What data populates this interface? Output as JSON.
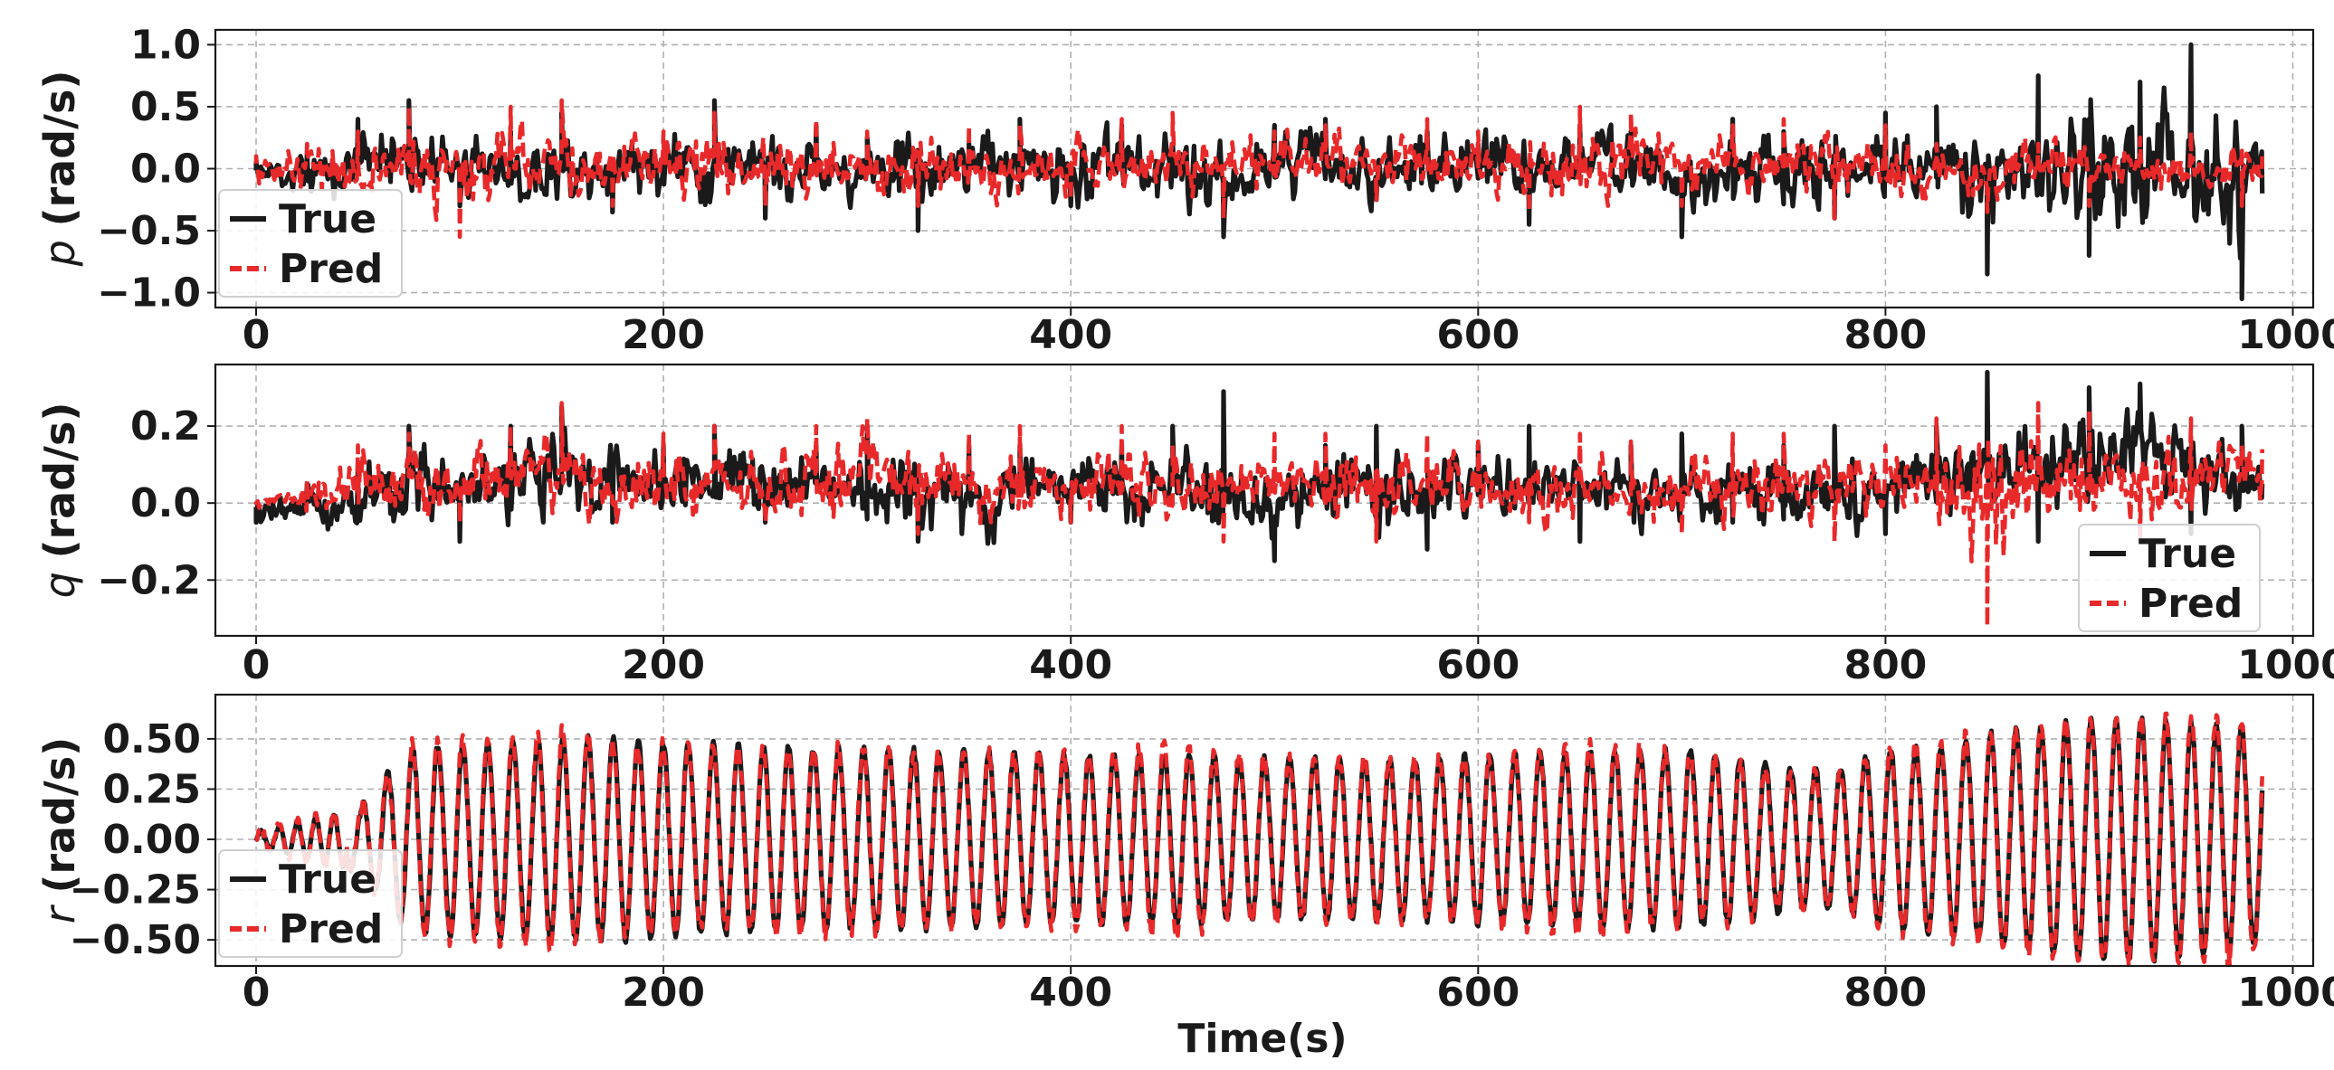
{
  "chart_data": [
    {
      "type": "line",
      "title": "",
      "ylabel_symbol": "p",
      "ylabel_unit": "(rad/s)",
      "xlabel": "",
      "xlim": [
        -20,
        1010
      ],
      "ylim": [
        -1.12,
        1.12
      ],
      "xticks": [
        0,
        200,
        400,
        600,
        800,
        1000
      ],
      "yticks": [
        -1.0,
        -0.5,
        0.0,
        0.5,
        1.0
      ],
      "ytick_labels": [
        "−1.0",
        "−0.5",
        "0.0",
        "0.5",
        "1.0"
      ],
      "grid": true,
      "legend_position": "lower-left",
      "series": [
        {
          "name": "True",
          "color": "#1a1a1a",
          "style": "solid",
          "x": [
            0,
            25,
            50,
            75,
            100,
            125,
            150,
            175,
            200,
            225,
            250,
            275,
            300,
            325,
            350,
            375,
            400,
            425,
            450,
            475,
            500,
            525,
            550,
            575,
            600,
            625,
            650,
            675,
            700,
            725,
            750,
            775,
            800,
            825,
            850,
            875,
            900,
            925,
            950,
            975,
            985
          ],
          "y": [
            0.05,
            0.12,
            0.4,
            0.55,
            -0.3,
            0.3,
            0.45,
            -0.35,
            0.1,
            0.55,
            -0.4,
            0.35,
            0.25,
            -0.5,
            0.2,
            0.4,
            -0.3,
            0.35,
            0.2,
            -0.55,
            0.35,
            0.4,
            -0.25,
            0.3,
            0.2,
            -0.45,
            0.35,
            0.3,
            -0.55,
            0.4,
            0.3,
            -0.4,
            0.45,
            0.5,
            -0.85,
            0.75,
            -0.7,
            0.7,
            1.0,
            -1.05,
            -0.2
          ],
          "envelope_low": [
            -0.15,
            -0.3,
            -0.55,
            -0.5,
            -0.4,
            -0.45,
            -0.45,
            -0.4,
            -0.45,
            -0.5,
            -0.45,
            -0.4,
            -0.45,
            -0.55,
            -0.4,
            -0.45,
            -0.5,
            -0.45,
            -0.55,
            -0.55,
            -0.45,
            -0.4,
            -0.45,
            -0.45,
            -0.45,
            -0.45,
            -0.4,
            -0.45,
            -0.55,
            -0.45,
            -0.45,
            -0.45,
            -0.5,
            -0.55,
            -0.85,
            -0.75,
            -0.7,
            -0.75,
            -0.85,
            -1.05,
            -0.25
          ],
          "envelope_high": [
            0.1,
            0.2,
            0.5,
            0.55,
            0.45,
            0.4,
            0.45,
            0.45,
            0.55,
            0.5,
            0.45,
            0.4,
            0.45,
            0.45,
            0.45,
            0.45,
            0.45,
            0.45,
            0.45,
            0.4,
            0.45,
            0.45,
            0.4,
            0.45,
            0.45,
            0.4,
            0.45,
            0.45,
            0.4,
            0.45,
            0.4,
            0.4,
            0.45,
            0.55,
            0.75,
            0.7,
            0.75,
            0.7,
            1.0,
            0.7,
            0.35
          ]
        },
        {
          "name": "Pred",
          "color": "#e8292a",
          "style": "dashed",
          "x": [
            0,
            25,
            50,
            75,
            100,
            125,
            150,
            175,
            200,
            225,
            250,
            275,
            300,
            325,
            350,
            375,
            400,
            425,
            450,
            475,
            500,
            525,
            550,
            575,
            600,
            625,
            650,
            675,
            700,
            725,
            750,
            775,
            800,
            825,
            850,
            875,
            900,
            925,
            950,
            975,
            985
          ],
          "y": [
            0.1,
            0.2,
            0.3,
            0.5,
            -0.55,
            0.5,
            0.55,
            -0.3,
            0.3,
            0.45,
            -0.3,
            0.4,
            0.3,
            -0.3,
            0.35,
            0.35,
            -0.25,
            0.4,
            0.45,
            -0.4,
            0.3,
            0.35,
            -0.25,
            0.4,
            0.3,
            -0.35,
            0.5,
            0.45,
            -0.3,
            0.35,
            0.4,
            -0.4,
            0.35,
            0.2,
            -0.35,
            0.2,
            -0.3,
            0.25,
            0.3,
            -0.3,
            0.1
          ],
          "envelope_low": [
            -0.2,
            -0.3,
            -0.4,
            -0.45,
            -0.55,
            -0.4,
            -0.4,
            -0.35,
            -0.4,
            -0.4,
            -0.35,
            -0.4,
            -0.4,
            -0.35,
            -0.4,
            -0.35,
            -0.35,
            -0.4,
            -0.4,
            -0.4,
            -0.35,
            -0.35,
            -0.35,
            -0.4,
            -0.35,
            -0.35,
            -0.4,
            -0.35,
            -0.35,
            -0.35,
            -0.35,
            -0.4,
            -0.35,
            -0.3,
            -0.35,
            -0.3,
            -0.3,
            -0.3,
            -0.3,
            -0.35,
            -0.2
          ],
          "envelope_high": [
            0.2,
            0.3,
            0.35,
            0.5,
            0.5,
            0.5,
            0.55,
            0.4,
            0.4,
            0.45,
            0.4,
            0.45,
            0.45,
            0.4,
            0.45,
            0.4,
            0.4,
            0.45,
            0.45,
            0.4,
            0.4,
            0.4,
            0.35,
            0.45,
            0.4,
            0.4,
            0.45,
            0.45,
            0.4,
            0.4,
            0.4,
            0.4,
            0.35,
            0.3,
            0.3,
            0.3,
            0.3,
            0.3,
            0.3,
            0.25,
            0.2
          ]
        }
      ]
    },
    {
      "type": "line",
      "title": "",
      "ylabel_symbol": "q",
      "ylabel_unit": "(rad/s)",
      "xlabel": "",
      "xlim": [
        -20,
        1010
      ],
      "ylim": [
        -0.345,
        0.36
      ],
      "xticks": [
        0,
        200,
        400,
        600,
        800,
        1000
      ],
      "yticks": [
        -0.2,
        0.0,
        0.2
      ],
      "ytick_labels": [
        "−0.2",
        "0.0",
        "0.2"
      ],
      "grid": true,
      "legend_position": "lower-right",
      "series": [
        {
          "name": "True",
          "color": "#1a1a1a",
          "style": "solid",
          "x": [
            0,
            25,
            50,
            75,
            100,
            125,
            150,
            175,
            200,
            225,
            250,
            275,
            300,
            325,
            350,
            375,
            400,
            425,
            450,
            475,
            500,
            525,
            550,
            575,
            600,
            625,
            650,
            675,
            700,
            725,
            750,
            775,
            800,
            825,
            850,
            875,
            900,
            925,
            950,
            975,
            985
          ],
          "y": [
            -0.05,
            0.05,
            0.1,
            0.2,
            -0.1,
            0.2,
            0.25,
            -0.05,
            0.15,
            0.2,
            -0.05,
            0.15,
            0.2,
            -0.1,
            0.15,
            0.15,
            -0.05,
            0.15,
            0.2,
            0.29,
            -0.15,
            0.15,
            0.2,
            -0.12,
            0.15,
            0.2,
            -0.1,
            0.15,
            0.18,
            -0.05,
            0.15,
            0.2,
            -0.08,
            0.2,
            0.34,
            -0.1,
            0.3,
            0.31,
            -0.08,
            0.2,
            0.05
          ],
          "envelope_low": [
            -0.08,
            -0.1,
            -0.15,
            -0.1,
            -0.12,
            -0.1,
            -0.08,
            -0.1,
            -0.12,
            -0.1,
            -0.12,
            -0.08,
            -0.1,
            -0.12,
            -0.2,
            -0.1,
            -0.12,
            -0.12,
            -0.12,
            -0.15,
            -0.18,
            -0.1,
            -0.15,
            -0.2,
            -0.1,
            -0.12,
            -0.08,
            -0.12,
            -0.1,
            -0.1,
            -0.12,
            -0.15,
            -0.1,
            -0.1,
            -0.15,
            -0.1,
            -0.1,
            -0.08,
            -0.1,
            -0.1,
            -0.05
          ],
          "envelope_high": [
            0.0,
            0.08,
            0.15,
            0.22,
            0.18,
            0.2,
            0.25,
            0.2,
            0.2,
            0.22,
            0.18,
            0.18,
            0.2,
            0.18,
            0.18,
            0.18,
            0.18,
            0.18,
            0.2,
            0.29,
            0.18,
            0.18,
            0.18,
            0.18,
            0.18,
            0.2,
            0.16,
            0.16,
            0.18,
            0.16,
            0.18,
            0.18,
            0.18,
            0.22,
            0.34,
            0.28,
            0.3,
            0.31,
            0.26,
            0.2,
            0.12
          ]
        },
        {
          "name": "Pred",
          "color": "#e8292a",
          "style": "dashed",
          "x": [
            0,
            25,
            50,
            75,
            100,
            125,
            150,
            175,
            200,
            225,
            250,
            275,
            300,
            325,
            350,
            375,
            400,
            425,
            450,
            475,
            500,
            525,
            550,
            575,
            600,
            625,
            650,
            675,
            700,
            725,
            750,
            775,
            800,
            825,
            850,
            875,
            900,
            925,
            950,
            975,
            985
          ],
          "y": [
            0.0,
            0.06,
            0.15,
            0.18,
            -0.05,
            0.2,
            0.26,
            0.0,
            0.18,
            0.2,
            -0.05,
            0.2,
            0.22,
            -0.08,
            0.18,
            0.2,
            -0.05,
            0.2,
            0.15,
            -0.1,
            0.18,
            0.18,
            -0.1,
            0.18,
            0.16,
            -0.05,
            0.18,
            0.16,
            -0.08,
            0.18,
            0.18,
            -0.1,
            0.15,
            0.22,
            -0.32,
            0.26,
            0.24,
            -0.1,
            0.22,
            0.15,
            0.14
          ],
          "envelope_low": [
            -0.03,
            -0.05,
            -0.1,
            -0.08,
            -0.1,
            -0.1,
            -0.08,
            -0.1,
            -0.1,
            -0.08,
            -0.12,
            -0.1,
            -0.1,
            -0.08,
            -0.1,
            -0.1,
            -0.08,
            -0.1,
            -0.1,
            -0.1,
            -0.08,
            -0.1,
            -0.1,
            -0.1,
            -0.08,
            -0.1,
            -0.08,
            -0.1,
            -0.1,
            -0.1,
            -0.08,
            -0.1,
            -0.1,
            -0.1,
            -0.32,
            -0.1,
            -0.1,
            -0.1,
            -0.1,
            -0.08,
            -0.05
          ],
          "envelope_high": [
            0.03,
            0.08,
            0.18,
            0.2,
            0.2,
            0.22,
            0.26,
            0.18,
            0.2,
            0.2,
            0.18,
            0.22,
            0.24,
            0.18,
            0.18,
            0.2,
            0.16,
            0.2,
            0.16,
            0.16,
            0.18,
            0.18,
            0.18,
            0.18,
            0.16,
            0.16,
            0.18,
            0.16,
            0.16,
            0.18,
            0.18,
            0.16,
            0.16,
            0.22,
            0.24,
            0.26,
            0.24,
            0.24,
            0.22,
            0.2,
            0.14
          ]
        }
      ]
    },
    {
      "type": "line",
      "title": "",
      "ylabel_symbol": "r",
      "ylabel_unit": "(rad/s)",
      "xlabel": "Time(s)",
      "xlim": [
        -20,
        1010
      ],
      "ylim": [
        -0.63,
        0.72
      ],
      "xticks": [
        0,
        200,
        400,
        600,
        800,
        1000
      ],
      "yticks": [
        -0.5,
        -0.25,
        0.0,
        0.25,
        0.5
      ],
      "ytick_labels": [
        "−0.50",
        "−0.25",
        "0.00",
        "0.25",
        "0.50"
      ],
      "grid": true,
      "legend_position": "lower-left",
      "oscillation_period_s": 12.3,
      "series": [
        {
          "name": "True",
          "color": "#1a1a1a",
          "style": "solid",
          "x": [
            0,
            25,
            50,
            75,
            100,
            125,
            150,
            175,
            200,
            225,
            250,
            275,
            300,
            325,
            350,
            375,
            400,
            425,
            450,
            475,
            500,
            525,
            550,
            575,
            600,
            625,
            650,
            675,
            700,
            725,
            750,
            775,
            800,
            825,
            850,
            875,
            900,
            925,
            950,
            975,
            985
          ],
          "amplitude": [
            0.03,
            0.1,
            0.15,
            0.45,
            0.48,
            0.48,
            0.5,
            0.5,
            0.48,
            0.47,
            0.46,
            0.45,
            0.45,
            0.44,
            0.43,
            0.43,
            0.42,
            0.42,
            0.42,
            0.41,
            0.4,
            0.4,
            0.4,
            0.4,
            0.42,
            0.42,
            0.43,
            0.44,
            0.44,
            0.42,
            0.36,
            0.34,
            0.44,
            0.46,
            0.52,
            0.56,
            0.6,
            0.6,
            0.58,
            0.56,
            0.5
          ]
        },
        {
          "name": "Pred",
          "color": "#e8292a",
          "style": "dashed",
          "x": [
            0,
            25,
            50,
            75,
            100,
            125,
            150,
            175,
            200,
            225,
            250,
            275,
            300,
            325,
            350,
            375,
            400,
            425,
            450,
            475,
            500,
            525,
            550,
            575,
            600,
            625,
            650,
            675,
            700,
            725,
            750,
            775,
            800,
            825,
            850,
            875,
            900,
            925,
            950,
            975,
            985
          ],
          "amplitude": [
            0.04,
            0.12,
            0.15,
            0.46,
            0.5,
            0.5,
            0.55,
            0.48,
            0.47,
            0.45,
            0.45,
            0.46,
            0.45,
            0.43,
            0.42,
            0.42,
            0.42,
            0.42,
            0.5,
            0.41,
            0.4,
            0.4,
            0.4,
            0.4,
            0.42,
            0.44,
            0.48,
            0.45,
            0.42,
            0.4,
            0.34,
            0.33,
            0.46,
            0.48,
            0.52,
            0.57,
            0.6,
            0.6,
            0.62,
            0.6,
            0.55
          ]
        }
      ]
    }
  ]
}
